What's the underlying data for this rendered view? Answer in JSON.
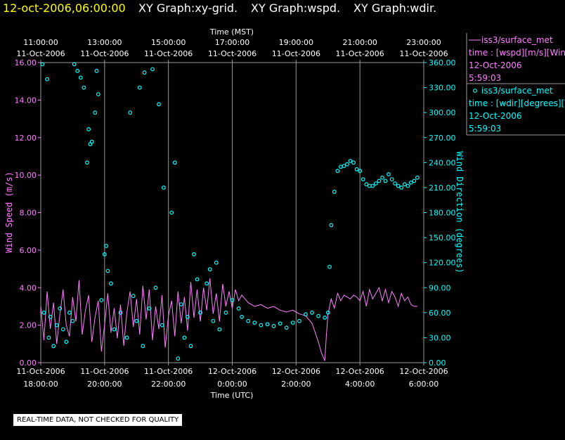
{
  "header": {
    "date": "12-oct-2006,06:00:00",
    "titles": [
      "XY Graph:xy-grid.",
      "XY Graph:wspd.",
      "XY Graph:wdir."
    ]
  },
  "notice": "REAL-TIME DATA, NOT CHECKED FOR QUALITY",
  "colors": {
    "wspd": "#ff80ff",
    "wdir": "#00ffff",
    "date": "#ffff00",
    "grid": "#9a9a9a",
    "text": "#ffffff"
  },
  "chart_data": {
    "type": "line",
    "x_top": {
      "label": "Time (MST)",
      "ticks": [
        {
          "time": "11:00:00",
          "date": "11-Oct-2006"
        },
        {
          "time": "13:00:00",
          "date": "11-Oct-2006"
        },
        {
          "time": "15:00:00",
          "date": "11-Oct-2006"
        },
        {
          "time": "17:00:00",
          "date": "11-Oct-2006"
        },
        {
          "time": "19:00:00",
          "date": "11-Oct-2006"
        },
        {
          "time": "21:00:00",
          "date": "11-Oct-2006"
        },
        {
          "time": "23:00:00",
          "date": "11-Oct-2006"
        }
      ]
    },
    "x_bottom": {
      "label": "Time (UTC)",
      "ticks": [
        {
          "date": "11-Oct-2006",
          "time": "18:00:00"
        },
        {
          "date": "11-Oct-2006",
          "time": "20:00:00"
        },
        {
          "date": "11-Oct-2006",
          "time": "22:00:00"
        },
        {
          "date": "12-Oct-2006",
          "time": "0:00:00"
        },
        {
          "date": "12-Oct-2006",
          "time": "2:00:00"
        },
        {
          "date": "12-Oct-2006",
          "time": "4:00:00"
        },
        {
          "date": "12-Oct-2006",
          "time": "6:00:00"
        }
      ]
    },
    "xlim_hours": [
      0,
      12
    ],
    "y_left": {
      "label": "Wind Speed (m/s)",
      "ylim": [
        0,
        16
      ],
      "ticks": [
        "0.00",
        "2.00",
        "4.00",
        "6.00",
        "8.00",
        "10.00",
        "12.00",
        "14.00",
        "16.00"
      ]
    },
    "y_right": {
      "label": "Wind Direction (degrees)",
      "ylim": [
        0,
        360
      ],
      "ticks": [
        "0.00",
        "30.00",
        "60.00",
        "90.00",
        "120.00",
        "150.00",
        "180.00",
        "210.00",
        "240.00",
        "270.00",
        "300.00",
        "330.00",
        "360.00"
      ]
    },
    "legend": [
      {
        "line1": "iss3/surface_met",
        "line2": "time : [wspd][m/s][Win",
        "line3": "12-Oct-2006",
        "line4": "5:59:03",
        "series": "wspd"
      },
      {
        "line1": "iss3/surface_met",
        "line2": "time : [wdir][degrees][V",
        "line3": "12-Oct-2006",
        "line4": "5:59:03",
        "series": "wdir"
      }
    ],
    "series": [
      {
        "name": "wspd",
        "kind": "line",
        "axis": "left",
        "points": [
          [
            0.0,
            3.0
          ],
          [
            0.1,
            1.2
          ],
          [
            0.2,
            3.8
          ],
          [
            0.3,
            1.8
          ],
          [
            0.4,
            3.2
          ],
          [
            0.5,
            1.0
          ],
          [
            0.6,
            2.6
          ],
          [
            0.7,
            3.9
          ],
          [
            0.8,
            2.0
          ],
          [
            0.9,
            1.4
          ],
          [
            1.0,
            3.5
          ],
          [
            1.1,
            2.2
          ],
          [
            1.2,
            4.4
          ],
          [
            1.3,
            1.5
          ],
          [
            1.4,
            2.8
          ],
          [
            1.5,
            3.6
          ],
          [
            1.6,
            1.1
          ],
          [
            1.7,
            2.4
          ],
          [
            1.8,
            3.3
          ],
          [
            1.9,
            0.6
          ],
          [
            2.0,
            2.0
          ],
          [
            2.1,
            3.7
          ],
          [
            2.2,
            1.6
          ],
          [
            2.3,
            2.9
          ],
          [
            2.4,
            1.3
          ],
          [
            2.5,
            3.1
          ],
          [
            2.6,
            0.9
          ],
          [
            2.7,
            2.7
          ],
          [
            2.8,
            3.8
          ],
          [
            2.9,
            1.9
          ],
          [
            3.0,
            3.4
          ],
          [
            3.1,
            1.5
          ],
          [
            3.2,
            4.1
          ],
          [
            3.3,
            2.3
          ],
          [
            3.4,
            3.9
          ],
          [
            3.5,
            1.2
          ],
          [
            3.6,
            3.0
          ],
          [
            3.7,
            1.8
          ],
          [
            3.8,
            3.6
          ],
          [
            3.9,
            0.8
          ],
          [
            4.0,
            2.5
          ],
          [
            4.1,
            3.3
          ],
          [
            4.2,
            1.4
          ],
          [
            4.3,
            3.8
          ],
          [
            4.4,
            2.1
          ],
          [
            4.5,
            3.5
          ],
          [
            4.6,
            1.7
          ],
          [
            4.7,
            4.3
          ],
          [
            4.8,
            2.4
          ],
          [
            4.9,
            3.9
          ],
          [
            5.0,
            2.2
          ],
          [
            5.1,
            4.0
          ],
          [
            5.2,
            2.8
          ],
          [
            5.3,
            4.5
          ],
          [
            5.4,
            2.6
          ],
          [
            5.5,
            3.7
          ],
          [
            5.6,
            2.2
          ],
          [
            5.7,
            4.2
          ],
          [
            5.8,
            3.0
          ],
          [
            5.9,
            3.8
          ],
          [
            6.0,
            2.9
          ],
          [
            6.1,
            3.9
          ],
          [
            6.2,
            3.3
          ],
          [
            6.3,
            3.6
          ],
          [
            6.4,
            3.4
          ],
          [
            6.5,
            3.2
          ],
          [
            6.7,
            3.0
          ],
          [
            6.9,
            3.1
          ],
          [
            7.1,
            2.9
          ],
          [
            7.3,
            3.0
          ],
          [
            7.5,
            2.8
          ],
          [
            7.7,
            2.7
          ],
          [
            7.9,
            2.8
          ],
          [
            8.1,
            2.6
          ],
          [
            8.3,
            2.5
          ],
          [
            8.5,
            2.1
          ],
          [
            8.6,
            1.6
          ],
          [
            8.7,
            1.1
          ],
          [
            8.8,
            0.5
          ],
          [
            8.9,
            0.1
          ],
          [
            8.95,
            1.5
          ],
          [
            9.0,
            2.6
          ],
          [
            9.1,
            3.4
          ],
          [
            9.2,
            2.9
          ],
          [
            9.3,
            3.7
          ],
          [
            9.4,
            3.3
          ],
          [
            9.5,
            3.6
          ],
          [
            9.6,
            3.5
          ],
          [
            9.7,
            3.4
          ],
          [
            9.8,
            3.6
          ],
          [
            9.9,
            3.5
          ],
          [
            10.0,
            3.3
          ],
          [
            10.1,
            3.8
          ],
          [
            10.2,
            3.0
          ],
          [
            10.3,
            3.9
          ],
          [
            10.4,
            3.4
          ],
          [
            10.5,
            3.7
          ],
          [
            10.6,
            4.0
          ],
          [
            10.7,
            3.3
          ],
          [
            10.8,
            3.9
          ],
          [
            10.9,
            3.2
          ],
          [
            11.0,
            3.8
          ],
          [
            11.1,
            3.5
          ],
          [
            11.2,
            3.0
          ],
          [
            11.3,
            3.7
          ],
          [
            11.4,
            3.3
          ],
          [
            11.5,
            3.5
          ],
          [
            11.6,
            3.1
          ],
          [
            11.7,
            3.0
          ],
          [
            11.8,
            3.0
          ]
        ]
      },
      {
        "name": "wdir",
        "kind": "scatter",
        "axis": "right",
        "points": [
          [
            0.05,
            358
          ],
          [
            0.2,
            340
          ],
          [
            0.1,
            60
          ],
          [
            0.25,
            30
          ],
          [
            0.3,
            55
          ],
          [
            0.4,
            20
          ],
          [
            0.5,
            45
          ],
          [
            0.6,
            65
          ],
          [
            0.7,
            40
          ],
          [
            0.8,
            25
          ],
          [
            0.9,
            60
          ],
          [
            1.0,
            50
          ],
          [
            1.05,
            358
          ],
          [
            1.15,
            350
          ],
          [
            1.25,
            342
          ],
          [
            1.35,
            330
          ],
          [
            1.5,
            280
          ],
          [
            1.6,
            265
          ],
          [
            1.7,
            300
          ],
          [
            1.8,
            322
          ],
          [
            1.45,
            240
          ],
          [
            1.55,
            262
          ],
          [
            1.75,
            350
          ],
          [
            2.0,
            130
          ],
          [
            2.1,
            110
          ],
          [
            2.2,
            95
          ],
          [
            2.05,
            140
          ],
          [
            1.9,
            75
          ],
          [
            2.3,
            40
          ],
          [
            2.5,
            60
          ],
          [
            2.7,
            30
          ],
          [
            2.9,
            80
          ],
          [
            3.0,
            50
          ],
          [
            3.2,
            20
          ],
          [
            3.4,
            65
          ],
          [
            3.6,
            90
          ],
          [
            3.8,
            45
          ],
          [
            3.1,
            330
          ],
          [
            3.25,
            348
          ],
          [
            3.5,
            352
          ],
          [
            3.7,
            310
          ],
          [
            2.8,
            300
          ],
          [
            3.85,
            210
          ],
          [
            4.1,
            180
          ],
          [
            4.2,
            240
          ],
          [
            4.4,
            70
          ],
          [
            4.6,
            55
          ],
          [
            4.8,
            130
          ],
          [
            4.9,
            100
          ],
          [
            4.3,
            5
          ],
          [
            4.5,
            30
          ],
          [
            4.7,
            20
          ],
          [
            5.0,
            60
          ],
          [
            5.2,
            95
          ],
          [
            5.4,
            50
          ],
          [
            5.6,
            40
          ],
          [
            5.8,
            60
          ],
          [
            6.0,
            75
          ],
          [
            6.2,
            65
          ],
          [
            5.3,
            112
          ],
          [
            5.5,
            120
          ],
          [
            6.3,
            55
          ],
          [
            6.5,
            50
          ],
          [
            6.7,
            48
          ],
          [
            6.9,
            45
          ],
          [
            7.1,
            46
          ],
          [
            7.3,
            44
          ],
          [
            7.5,
            47
          ],
          [
            7.7,
            42
          ],
          [
            7.9,
            48
          ],
          [
            8.1,
            50
          ],
          [
            8.3,
            58
          ],
          [
            8.5,
            60
          ],
          [
            8.7,
            56
          ],
          [
            8.9,
            54
          ],
          [
            9.0,
            60
          ],
          [
            9.05,
            115
          ],
          [
            9.1,
            165
          ],
          [
            9.2,
            205
          ],
          [
            9.3,
            230
          ],
          [
            9.4,
            235
          ],
          [
            9.5,
            236
          ],
          [
            9.6,
            238
          ],
          [
            9.7,
            242
          ],
          [
            9.8,
            240
          ],
          [
            9.9,
            232
          ],
          [
            10.0,
            230
          ],
          [
            10.1,
            220
          ],
          [
            10.2,
            214
          ],
          [
            10.3,
            212
          ],
          [
            10.4,
            212
          ],
          [
            10.5,
            215
          ],
          [
            10.6,
            218
          ],
          [
            10.7,
            222
          ],
          [
            10.8,
            218
          ],
          [
            10.9,
            226
          ],
          [
            11.0,
            220
          ],
          [
            11.1,
            215
          ],
          [
            11.2,
            212
          ],
          [
            11.3,
            210
          ],
          [
            11.4,
            214
          ],
          [
            11.5,
            212
          ],
          [
            11.6,
            216
          ],
          [
            11.7,
            218
          ],
          [
            11.8,
            222
          ]
        ]
      }
    ]
  }
}
